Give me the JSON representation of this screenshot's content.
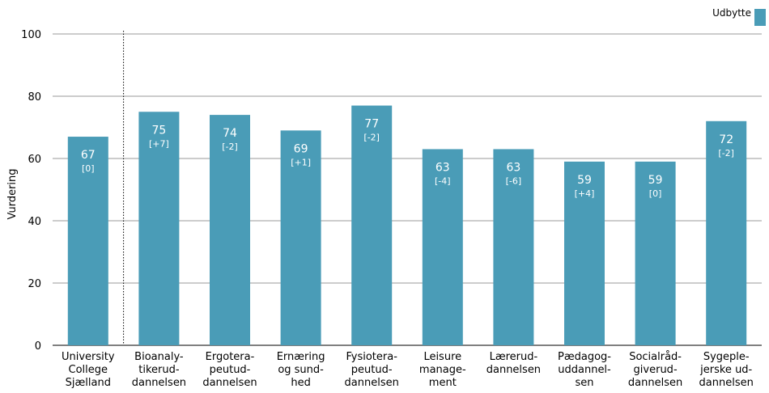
{
  "chart_data": {
    "type": "bar",
    "ylabel": "Vurdering",
    "ylim": [
      0,
      100
    ],
    "yticks": [
      0,
      20,
      40,
      60,
      80,
      100
    ],
    "grid": true,
    "legend": {
      "position": "top-right",
      "entries": [
        "Udbytte"
      ]
    },
    "colors": {
      "bar": "#4a9cb7"
    },
    "categories": [
      [
        "University",
        "College",
        "Sjælland"
      ],
      [
        "Bioanaly-",
        "tikerud-",
        "dannelsen"
      ],
      [
        "Ergotera-",
        "peutud-",
        "dannelsen"
      ],
      [
        "Ernæring",
        "og sund-",
        "hed"
      ],
      [
        "Fysiotera-",
        "peutud-",
        "dannelsen"
      ],
      [
        "Leisure",
        "manage-",
        "ment"
      ],
      [
        "Lærerud-",
        "dannelsen"
      ],
      [
        "Pædagog-",
        "uddannel-",
        "sen"
      ],
      [
        "Socialråd-",
        "giverud-",
        "dannelsen"
      ],
      [
        "Sygeple-",
        "jerske ud-",
        "dannelsen"
      ]
    ],
    "series": [
      {
        "name": "Udbytte",
        "values": [
          67,
          75,
          74,
          69,
          77,
          63,
          63,
          59,
          59,
          72
        ],
        "value_labels": [
          "67",
          "75",
          "74",
          "69",
          "77",
          "63",
          "63",
          "59",
          "59",
          "72"
        ],
        "delta_labels": [
          "[0]",
          "[+7]",
          "[-2]",
          "[+1]",
          "[-2]",
          "[-4]",
          "[-6]",
          "[+4]",
          "[0]",
          "[-2]"
        ]
      }
    ],
    "separator_after_index": 0
  }
}
